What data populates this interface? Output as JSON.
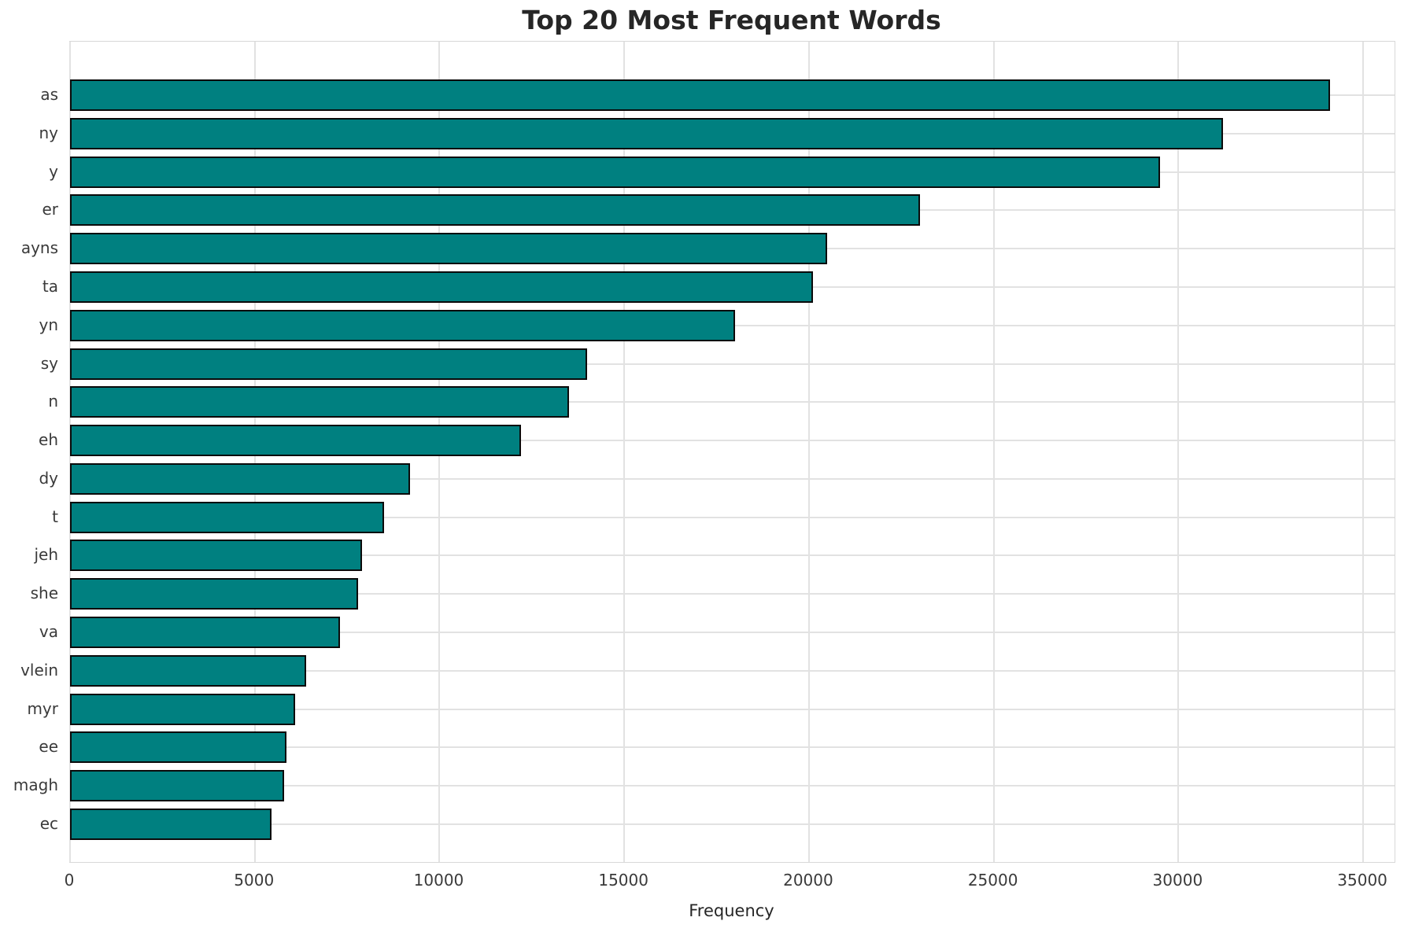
{
  "chart_data": {
    "type": "bar",
    "orientation": "horizontal",
    "title": "Top 20 Most Frequent Words",
    "xlabel": "Frequency",
    "ylabel": "",
    "categories": [
      "as",
      "ny",
      "y",
      "er",
      "ayns",
      "ta",
      "yn",
      "sy",
      "n",
      "eh",
      "dy",
      "t",
      "jeh",
      "she",
      "va",
      "vlein",
      "myr",
      "ee",
      "magh",
      "ec"
    ],
    "values": [
      34100,
      31200,
      29500,
      23000,
      20500,
      20100,
      18000,
      14000,
      13500,
      12200,
      9200,
      8500,
      7900,
      7800,
      7300,
      6400,
      6100,
      5850,
      5800,
      5450
    ],
    "xlim": [
      0,
      35850
    ],
    "x_ticks": [
      0,
      5000,
      10000,
      15000,
      20000,
      25000,
      30000,
      35000
    ],
    "x_tick_labels": [
      "0",
      "5000",
      "10000",
      "15000",
      "20000",
      "25000",
      "30000",
      "35000"
    ],
    "grid": true,
    "legend_position": "none",
    "colors": {
      "bar_fill": "#008080",
      "bar_edge": "#0a0a0a",
      "grid_line": "#e2e2e2",
      "spine": "#d8d8d8",
      "title_text": "#262626",
      "tick_text": "#3a3a3a",
      "background": "#ffffff"
    }
  }
}
